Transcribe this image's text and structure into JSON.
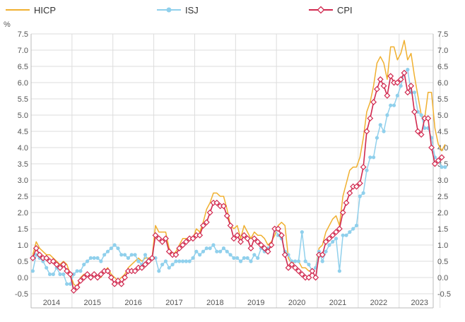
{
  "chart_data": {
    "type": "line",
    "title": "",
    "ylabel": "%",
    "xlabel": "",
    "ylim": [
      -0.5,
      7.5
    ],
    "y_ticks": [
      "7.5",
      "7.0",
      "6.5",
      "6.0",
      "5.5",
      "5.0",
      "4.5",
      "4.0",
      "3.5",
      "3.0",
      "2.5",
      "2.0",
      "1.5",
      "1.0",
      "0.5",
      "0.0",
      "-0.5"
    ],
    "x_start": "2014-01",
    "x_end": "2023-10",
    "year_labels": [
      "2014",
      "2015",
      "2016",
      "2017",
      "2018",
      "2019",
      "2020",
      "2021",
      "2022",
      "2023"
    ],
    "grid": true,
    "legend_position": "top",
    "series": [
      {
        "name": "HICP",
        "color": "#f0b030",
        "marker": "none",
        "values": [
          0.7,
          1.1,
          0.9,
          0.8,
          0.7,
          0.7,
          0.6,
          0.5,
          0.4,
          0.5,
          0.4,
          0.1,
          -0.2,
          -0.3,
          0.0,
          0.1,
          0.1,
          0.0,
          0.1,
          0.0,
          0.0,
          0.2,
          0.3,
          0.1,
          0.0,
          -0.1,
          0.0,
          0.1,
          0.3,
          0.4,
          0.5,
          0.6,
          0.5,
          0.6,
          0.6,
          0.6,
          1.6,
          1.4,
          1.4,
          1.4,
          0.9,
          0.7,
          0.8,
          1.0,
          1.2,
          1.2,
          1.2,
          1.2,
          1.5,
          1.4,
          1.7,
          2.1,
          2.3,
          2.6,
          2.6,
          2.5,
          2.5,
          2.1,
          1.6,
          1.5,
          1.6,
          1.2,
          1.6,
          1.4,
          1.2,
          1.4,
          1.3,
          1.3,
          1.2,
          1.0,
          1.1,
          1.3,
          1.6,
          1.7,
          1.6,
          0.6,
          0.4,
          0.5,
          0.5,
          0.3,
          0.3,
          0.2,
          0.2,
          0.3,
          0.9,
          1.0,
          1.4,
          1.6,
          1.8,
          1.9,
          1.6,
          2.5,
          2.9,
          3.3,
          3.4,
          3.4,
          3.7,
          4.3,
          5.1,
          5.4,
          5.9,
          6.6,
          6.8,
          6.6,
          6.1,
          7.1,
          7.1,
          6.7,
          6.9,
          7.3,
          6.7,
          6.9,
          6.2,
          5.6,
          5.0,
          4.9,
          5.7,
          5.7,
          4.6,
          4.1,
          3.9,
          4.1
        ]
      },
      {
        "name": "ISJ",
        "color": "#90d0ec",
        "marker": "circle",
        "values": [
          0.2,
          0.7,
          0.6,
          0.5,
          0.3,
          0.1,
          0.1,
          0.3,
          0.1,
          0.1,
          -0.2,
          -0.2,
          0.1,
          0.2,
          0.2,
          0.4,
          0.5,
          0.6,
          0.6,
          0.6,
          0.5,
          0.7,
          0.8,
          0.9,
          1.0,
          0.9,
          0.7,
          0.7,
          0.6,
          0.7,
          0.7,
          0.5,
          0.4,
          0.7,
          0.5,
          0.6,
          0.6,
          0.2,
          0.4,
          0.5,
          0.3,
          0.4,
          0.5,
          0.5,
          0.5,
          0.5,
          0.5,
          0.6,
          0.8,
          0.7,
          0.8,
          0.9,
          0.9,
          1.0,
          0.8,
          0.8,
          0.9,
          0.8,
          0.7,
          0.6,
          0.6,
          0.5,
          0.6,
          0.6,
          0.5,
          0.7,
          0.6,
          0.9,
          0.8,
          0.9,
          1.0,
          1.5,
          1.3,
          1.2,
          0.8,
          0.7,
          0.5,
          0.5,
          0.5,
          1.4,
          0.5,
          0.4,
          0.2,
          0.3,
          0.8,
          0.5,
          0.8,
          1.0,
          1.1,
          1.2,
          0.2,
          1.3,
          1.3,
          1.4,
          1.5,
          1.6,
          2.5,
          2.6,
          3.3,
          3.7,
          3.7,
          4.3,
          4.7,
          4.5,
          5.0,
          5.3,
          5.3,
          5.6,
          5.9,
          6.3,
          6.4,
          5.7,
          5.7,
          5.1,
          5.0,
          4.6,
          4.6,
          4.3,
          3.7,
          3.6,
          3.4,
          3.4
        ]
      },
      {
        "name": "CPI",
        "color": "#d1294f",
        "marker": "diamond",
        "values": [
          0.6,
          0.9,
          0.7,
          0.6,
          0.6,
          0.5,
          0.5,
          0.4,
          0.3,
          0.4,
          0.2,
          0.1,
          -0.4,
          -0.3,
          -0.1,
          0.0,
          0.1,
          0.0,
          0.1,
          0.0,
          0.1,
          0.2,
          0.2,
          0.0,
          -0.2,
          -0.1,
          -0.2,
          0.0,
          0.2,
          0.2,
          0.2,
          0.3,
          0.3,
          0.4,
          0.5,
          0.6,
          1.3,
          1.2,
          1.1,
          1.2,
          0.8,
          0.7,
          0.7,
          0.9,
          1.0,
          1.1,
          1.2,
          1.2,
          1.3,
          1.3,
          1.6,
          1.7,
          2.0,
          2.3,
          2.3,
          2.2,
          2.2,
          1.9,
          1.6,
          1.2,
          1.3,
          1.1,
          1.3,
          1.2,
          0.9,
          1.2,
          1.1,
          1.0,
          0.9,
          0.8,
          1.0,
          1.5,
          1.5,
          1.3,
          0.7,
          0.3,
          0.4,
          0.3,
          0.2,
          0.1,
          0.0,
          0.0,
          0.2,
          0.0,
          0.7,
          0.7,
          1.1,
          1.2,
          1.3,
          1.4,
          1.5,
          2.0,
          2.3,
          2.6,
          2.8,
          2.8,
          2.9,
          3.4,
          4.5,
          4.9,
          5.4,
          5.8,
          6.1,
          5.9,
          5.6,
          6.2,
          6.0,
          6.0,
          6.1,
          6.3,
          5.7,
          5.9,
          5.1,
          4.5,
          4.4,
          4.9,
          4.9,
          4.0,
          3.5,
          3.6,
          3.7
        ]
      }
    ]
  }
}
